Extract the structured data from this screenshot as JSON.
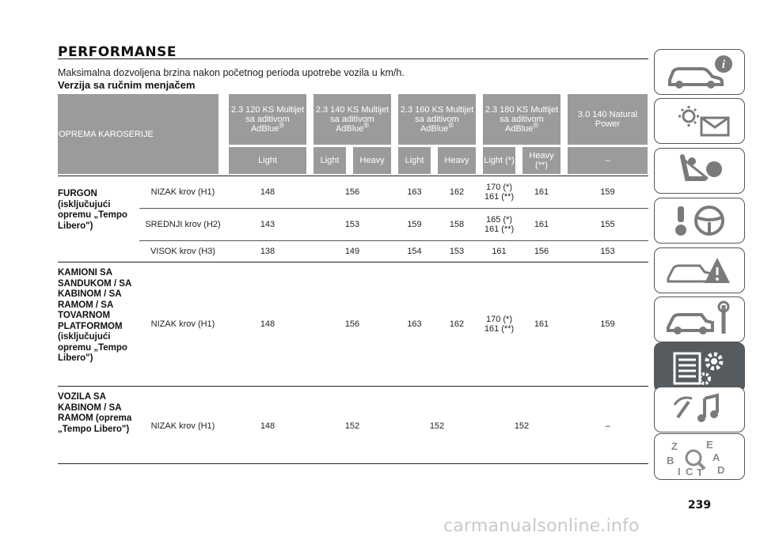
{
  "section_title": "PERFORMANSE",
  "intro_text": "Maksimalna dozvoljena brzina nakon početnog perioda upotrebe vozila u km/h.",
  "subtitle": "Verzija sa ručnim menjačem",
  "table": {
    "first_header": "OPREMA KAROSERIJE",
    "engines": [
      {
        "name": "2.3 120 KS Multijet sa aditivom AdBlue",
        "mark": "®"
      },
      {
        "name": "2.3 140 KS Multijet sa aditivom AdBlue",
        "mark": "®"
      },
      {
        "name": "2.3 160 KS Multijet sa aditivom AdBlue",
        "mark": "®"
      },
      {
        "name": "2.3 180 KS Multijet sa aditivom AdBlue",
        "mark": "®"
      },
      {
        "name": "3.0 140 Natural Power",
        "mark": ""
      }
    ],
    "subheaders": [
      "Light",
      "Light",
      "Heavy",
      "Light",
      "Heavy",
      "Light (*)",
      "Heavy (**)",
      "–"
    ],
    "groups": [
      {
        "name": "FURGON (isključujući opremu „Tempo Libero\")",
        "rows": [
          {
            "roof": "NIZAK krov (H1)",
            "values": [
              "148",
              "156",
              "163",
              "162",
              "170 (*) 161 (**)",
              "161",
              "159"
            ]
          },
          {
            "roof": "SREDNJI krov (H2)",
            "values": [
              "143",
              "153",
              "159",
              "158",
              "165 (*) 161 (**)",
              "161",
              "155"
            ]
          },
          {
            "roof": "VISOK krov (H3)",
            "values": [
              "138",
              "149",
              "154",
              "153",
              "161",
              "156",
              "153"
            ]
          }
        ]
      },
      {
        "name": "KAMIONI SA SANDUKOM / SA KABINOM / SA RAMOM / SA TOVARNOM PLATFORMOM (isključujući opremu „Tempo Libero\")",
        "rows": [
          {
            "roof": "NIZAK krov (H1)",
            "values": [
              "148",
              "156",
              "163",
              "162",
              "170 (*) 161 (**)",
              "161",
              "159"
            ]
          }
        ]
      },
      {
        "name": "VOZILA SA KABINOM / SA RAMOM (oprema „Tempo Libero\")",
        "rows": [
          {
            "roof": "NIZAK krov (H1)",
            "values": [
              "148",
              "152",
              "152",
              "152",
              "–"
            ]
          }
        ]
      }
    ]
  },
  "sidebar": {
    "tabs": [
      {
        "icon": "car-info-icon",
        "active": false
      },
      {
        "icon": "lights-message-icon",
        "active": false
      },
      {
        "icon": "airbag-seat-icon",
        "active": false
      },
      {
        "icon": "key-steering-icon",
        "active": false
      },
      {
        "icon": "car-warning-icon",
        "active": false
      },
      {
        "icon": "car-wrench-icon",
        "active": false
      },
      {
        "icon": "technical-data-gear-icon",
        "active": true
      },
      {
        "icon": "music-satellite-icon",
        "active": false
      },
      {
        "icon": "alphabet-index-icon",
        "active": false
      }
    ],
    "index_letters": [
      "Z",
      "E",
      "B",
      "A",
      "D",
      "I",
      "C",
      "T"
    ]
  },
  "page_number": "239",
  "watermark": "carmanualsonline.info",
  "colors": {
    "header_bg": "#9b9b9b",
    "active_tab": "#555b5e",
    "tab_border": "#555555"
  }
}
